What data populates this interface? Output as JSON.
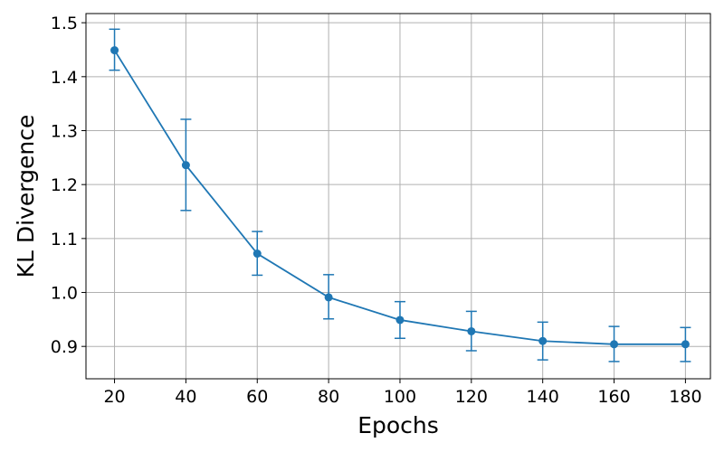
{
  "chart_data": {
    "type": "line",
    "title": "",
    "xlabel": "Epochs",
    "ylabel": "KL Divergence",
    "x": [
      20,
      40,
      60,
      80,
      100,
      120,
      140,
      160,
      180
    ],
    "series": [
      {
        "values": [
          1.449,
          1.236,
          1.072,
          0.991,
          0.949,
          0.928,
          0.91,
          0.904,
          0.904
        ],
        "error_low": [
          1.412,
          1.152,
          1.032,
          0.951,
          0.915,
          0.892,
          0.875,
          0.872,
          0.872
        ],
        "error_high": [
          1.488,
          1.321,
          1.113,
          1.033,
          0.983,
          0.965,
          0.945,
          0.937,
          0.935
        ],
        "color": "#1f77b4"
      }
    ],
    "xticks": [
      "20",
      "40",
      "60",
      "80",
      "100",
      "120",
      "140",
      "160",
      "180"
    ],
    "yticks": [
      "0.9",
      "1.0",
      "1.1",
      "1.2",
      "1.3",
      "1.4",
      "1.5"
    ],
    "xlim": [
      12,
      187
    ],
    "ylim": [
      0.84,
      1.517
    ],
    "grid": true,
    "legend": "none"
  }
}
